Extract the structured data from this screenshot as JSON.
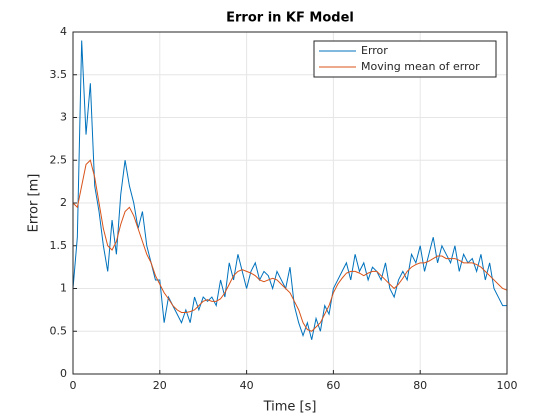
{
  "chart_data": {
    "type": "line",
    "title": "Error in KF Model",
    "xlabel": "Time [s]",
    "ylabel": "Error [m]",
    "x": [
      0,
      1,
      2,
      3,
      4,
      5,
      6,
      7,
      8,
      9,
      10,
      11,
      12,
      13,
      14,
      15,
      16,
      17,
      18,
      19,
      20,
      21,
      22,
      23,
      24,
      25,
      26,
      27,
      28,
      29,
      30,
      31,
      32,
      33,
      34,
      35,
      36,
      37,
      38,
      39,
      40,
      41,
      42,
      43,
      44,
      45,
      46,
      47,
      48,
      49,
      50,
      51,
      52,
      53,
      54,
      55,
      56,
      57,
      58,
      59,
      60,
      61,
      62,
      63,
      64,
      65,
      66,
      67,
      68,
      69,
      70,
      71,
      72,
      73,
      74,
      75,
      76,
      77,
      78,
      79,
      80,
      81,
      82,
      83,
      84,
      85,
      86,
      87,
      88,
      89,
      90,
      91,
      92,
      93,
      94,
      95,
      96,
      97,
      98,
      99,
      100
    ],
    "series": [
      {
        "name": "Error",
        "color": "#0072BD",
        "values": [
          1.0,
          1.6,
          3.9,
          2.8,
          3.4,
          2.2,
          1.9,
          1.5,
          1.2,
          1.8,
          1.4,
          2.1,
          2.5,
          2.2,
          2.0,
          1.7,
          1.9,
          1.5,
          1.3,
          1.1,
          1.1,
          0.6,
          0.9,
          0.8,
          0.7,
          0.6,
          0.75,
          0.6,
          0.9,
          0.75,
          0.9,
          0.85,
          0.9,
          0.8,
          1.1,
          0.9,
          1.3,
          1.1,
          1.4,
          1.2,
          1.0,
          1.2,
          1.3,
          1.1,
          1.2,
          1.15,
          1.0,
          1.2,
          1.1,
          1.0,
          1.25,
          0.8,
          0.6,
          0.45,
          0.6,
          0.4,
          0.65,
          0.5,
          0.8,
          0.7,
          1.0,
          1.1,
          1.2,
          1.3,
          1.1,
          1.4,
          1.2,
          1.3,
          1.1,
          1.25,
          1.2,
          1.1,
          1.3,
          1.0,
          0.9,
          1.1,
          1.2,
          1.1,
          1.4,
          1.3,
          1.5,
          1.2,
          1.4,
          1.6,
          1.3,
          1.5,
          1.4,
          1.3,
          1.5,
          1.2,
          1.4,
          1.3,
          1.35,
          1.2,
          1.4,
          1.1,
          1.3,
          1.0,
          0.9,
          0.8,
          0.8
        ]
      },
      {
        "name": "Moving mean of error",
        "color": "#D95319",
        "values": [
          2.0,
          1.95,
          2.2,
          2.45,
          2.5,
          2.3,
          2.0,
          1.7,
          1.5,
          1.45,
          1.55,
          1.75,
          1.9,
          1.95,
          1.85,
          1.7,
          1.55,
          1.4,
          1.3,
          1.15,
          1.05,
          0.95,
          0.88,
          0.8,
          0.75,
          0.72,
          0.72,
          0.73,
          0.75,
          0.8,
          0.85,
          0.87,
          0.85,
          0.85,
          0.88,
          0.95,
          1.05,
          1.15,
          1.2,
          1.22,
          1.2,
          1.18,
          1.15,
          1.1,
          1.08,
          1.1,
          1.12,
          1.1,
          1.05,
          1.0,
          0.95,
          0.85,
          0.75,
          0.6,
          0.52,
          0.5,
          0.55,
          0.6,
          0.7,
          0.8,
          0.95,
          1.05,
          1.12,
          1.18,
          1.2,
          1.2,
          1.18,
          1.15,
          1.18,
          1.2,
          1.2,
          1.15,
          1.1,
          1.05,
          1.0,
          1.05,
          1.12,
          1.2,
          1.25,
          1.28,
          1.3,
          1.3,
          1.32,
          1.35,
          1.38,
          1.38,
          1.35,
          1.35,
          1.35,
          1.33,
          1.3,
          1.3,
          1.3,
          1.28,
          1.25,
          1.2,
          1.15,
          1.1,
          1.05,
          1.0,
          0.98
        ]
      }
    ],
    "xlim": [
      0,
      100
    ],
    "xticks": [
      0,
      20,
      40,
      60,
      80,
      100
    ],
    "ylim": [
      0,
      4
    ],
    "yticks": [
      0,
      0.5,
      1,
      1.5,
      2,
      2.5,
      3,
      3.5,
      4
    ],
    "grid": true,
    "legend": "northeast"
  }
}
